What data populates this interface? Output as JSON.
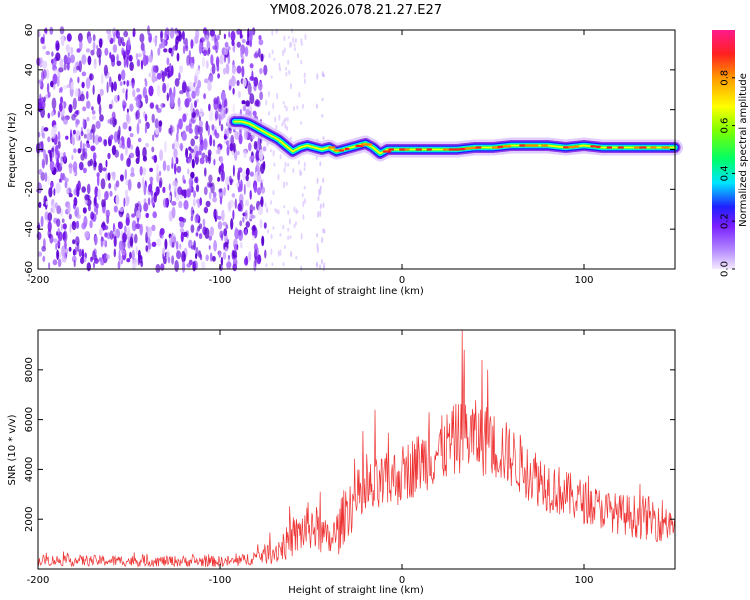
{
  "title": "YM08.2026.078.21.27.E27",
  "chart_data": [
    {
      "type": "heatmap",
      "name": "spectrogram",
      "xlabel": "Height of straight line (km)",
      "ylabel": "Frequency (Hz)",
      "xlim": [
        -200,
        150
      ],
      "ylim": [
        -60,
        60
      ],
      "xticks": [
        -200,
        -100,
        0,
        100
      ],
      "yticks": [
        -60,
        -40,
        -20,
        0,
        20,
        40,
        60
      ],
      "noise_region_x": [
        -200,
        -75
      ],
      "ridge": {
        "x": [
          -92,
          -88,
          -84,
          -80,
          -76,
          -72,
          -68,
          -64,
          -60,
          -56,
          -52,
          -48,
          -44,
          -40,
          -36,
          -32,
          -28,
          -24,
          -20,
          -16,
          -12,
          -8,
          -4,
          0,
          10,
          20,
          30,
          40,
          50,
          60,
          70,
          80,
          90,
          100,
          110,
          120,
          130,
          140,
          150
        ],
        "freq": [
          14,
          14,
          13,
          11,
          9,
          7,
          5,
          2,
          -1,
          1,
          2,
          1,
          0,
          1,
          -1,
          0,
          1,
          2,
          3,
          1,
          -2,
          0,
          0,
          0,
          0,
          0,
          0,
          1,
          1,
          2,
          2,
          2,
          1,
          2,
          1,
          1,
          1,
          1,
          1
        ]
      },
      "colorbar": {
        "label": "Normalized spectral amplitude",
        "range": [
          0,
          1
        ],
        "ticks": [
          "0.0",
          "0.2",
          "0.4",
          "0.6",
          "0.8"
        ],
        "colors": [
          "#f0e0ff",
          "#8a2be2",
          "#1a1aff",
          "#00ffff",
          "#00ff00",
          "#ffff00",
          "#ff8000",
          "#ff0000",
          "#ff1493"
        ]
      }
    },
    {
      "type": "line",
      "name": "snr",
      "xlabel": "Height of straight line (km)",
      "ylabel": "SNR (10 * v/v)",
      "xlim": [
        -200,
        150
      ],
      "ylim": [
        0,
        9600
      ],
      "xticks": [
        -200,
        -100,
        0,
        100
      ],
      "yticks": [
        2000,
        4000,
        6000,
        8000
      ],
      "color": "#ee3333",
      "envelope": {
        "x": [
          -200,
          -150,
          -90,
          -80,
          -70,
          -60,
          -50,
          -40,
          -35,
          -30,
          -20,
          -10,
          0,
          10,
          20,
          30,
          35,
          40,
          45,
          50,
          60,
          70,
          80,
          90,
          100,
          110,
          120,
          130,
          140,
          150
        ],
        "mid": [
          350,
          320,
          300,
          500,
          700,
          1200,
          1800,
          1100,
          1500,
          2500,
          3000,
          3400,
          3800,
          4300,
          4700,
          5200,
          5400,
          5300,
          5200,
          5000,
          4500,
          3900,
          3400,
          3000,
          2700,
          2400,
          2200,
          2100,
          2000,
          1900
        ],
        "amp": [
          300,
          300,
          300,
          400,
          700,
          1000,
          1400,
          900,
          1300,
          1600,
          1700,
          1600,
          1600,
          1700,
          1800,
          2000,
          2200,
          2000,
          2000,
          1900,
          1700,
          1600,
          1500,
          1300,
          1200,
          1100,
          1100,
          1200,
          1200,
          1200
        ]
      },
      "spikes": [
        {
          "x": -45,
          "y": 3100
        },
        {
          "x": -15,
          "y": 6400
        },
        {
          "x": 15,
          "y": 6300
        },
        {
          "x": 33,
          "y": 9600
        },
        {
          "x": 34,
          "y": 8800
        },
        {
          "x": 44,
          "y": 8400
        },
        {
          "x": 47,
          "y": 8000
        }
      ]
    }
  ]
}
